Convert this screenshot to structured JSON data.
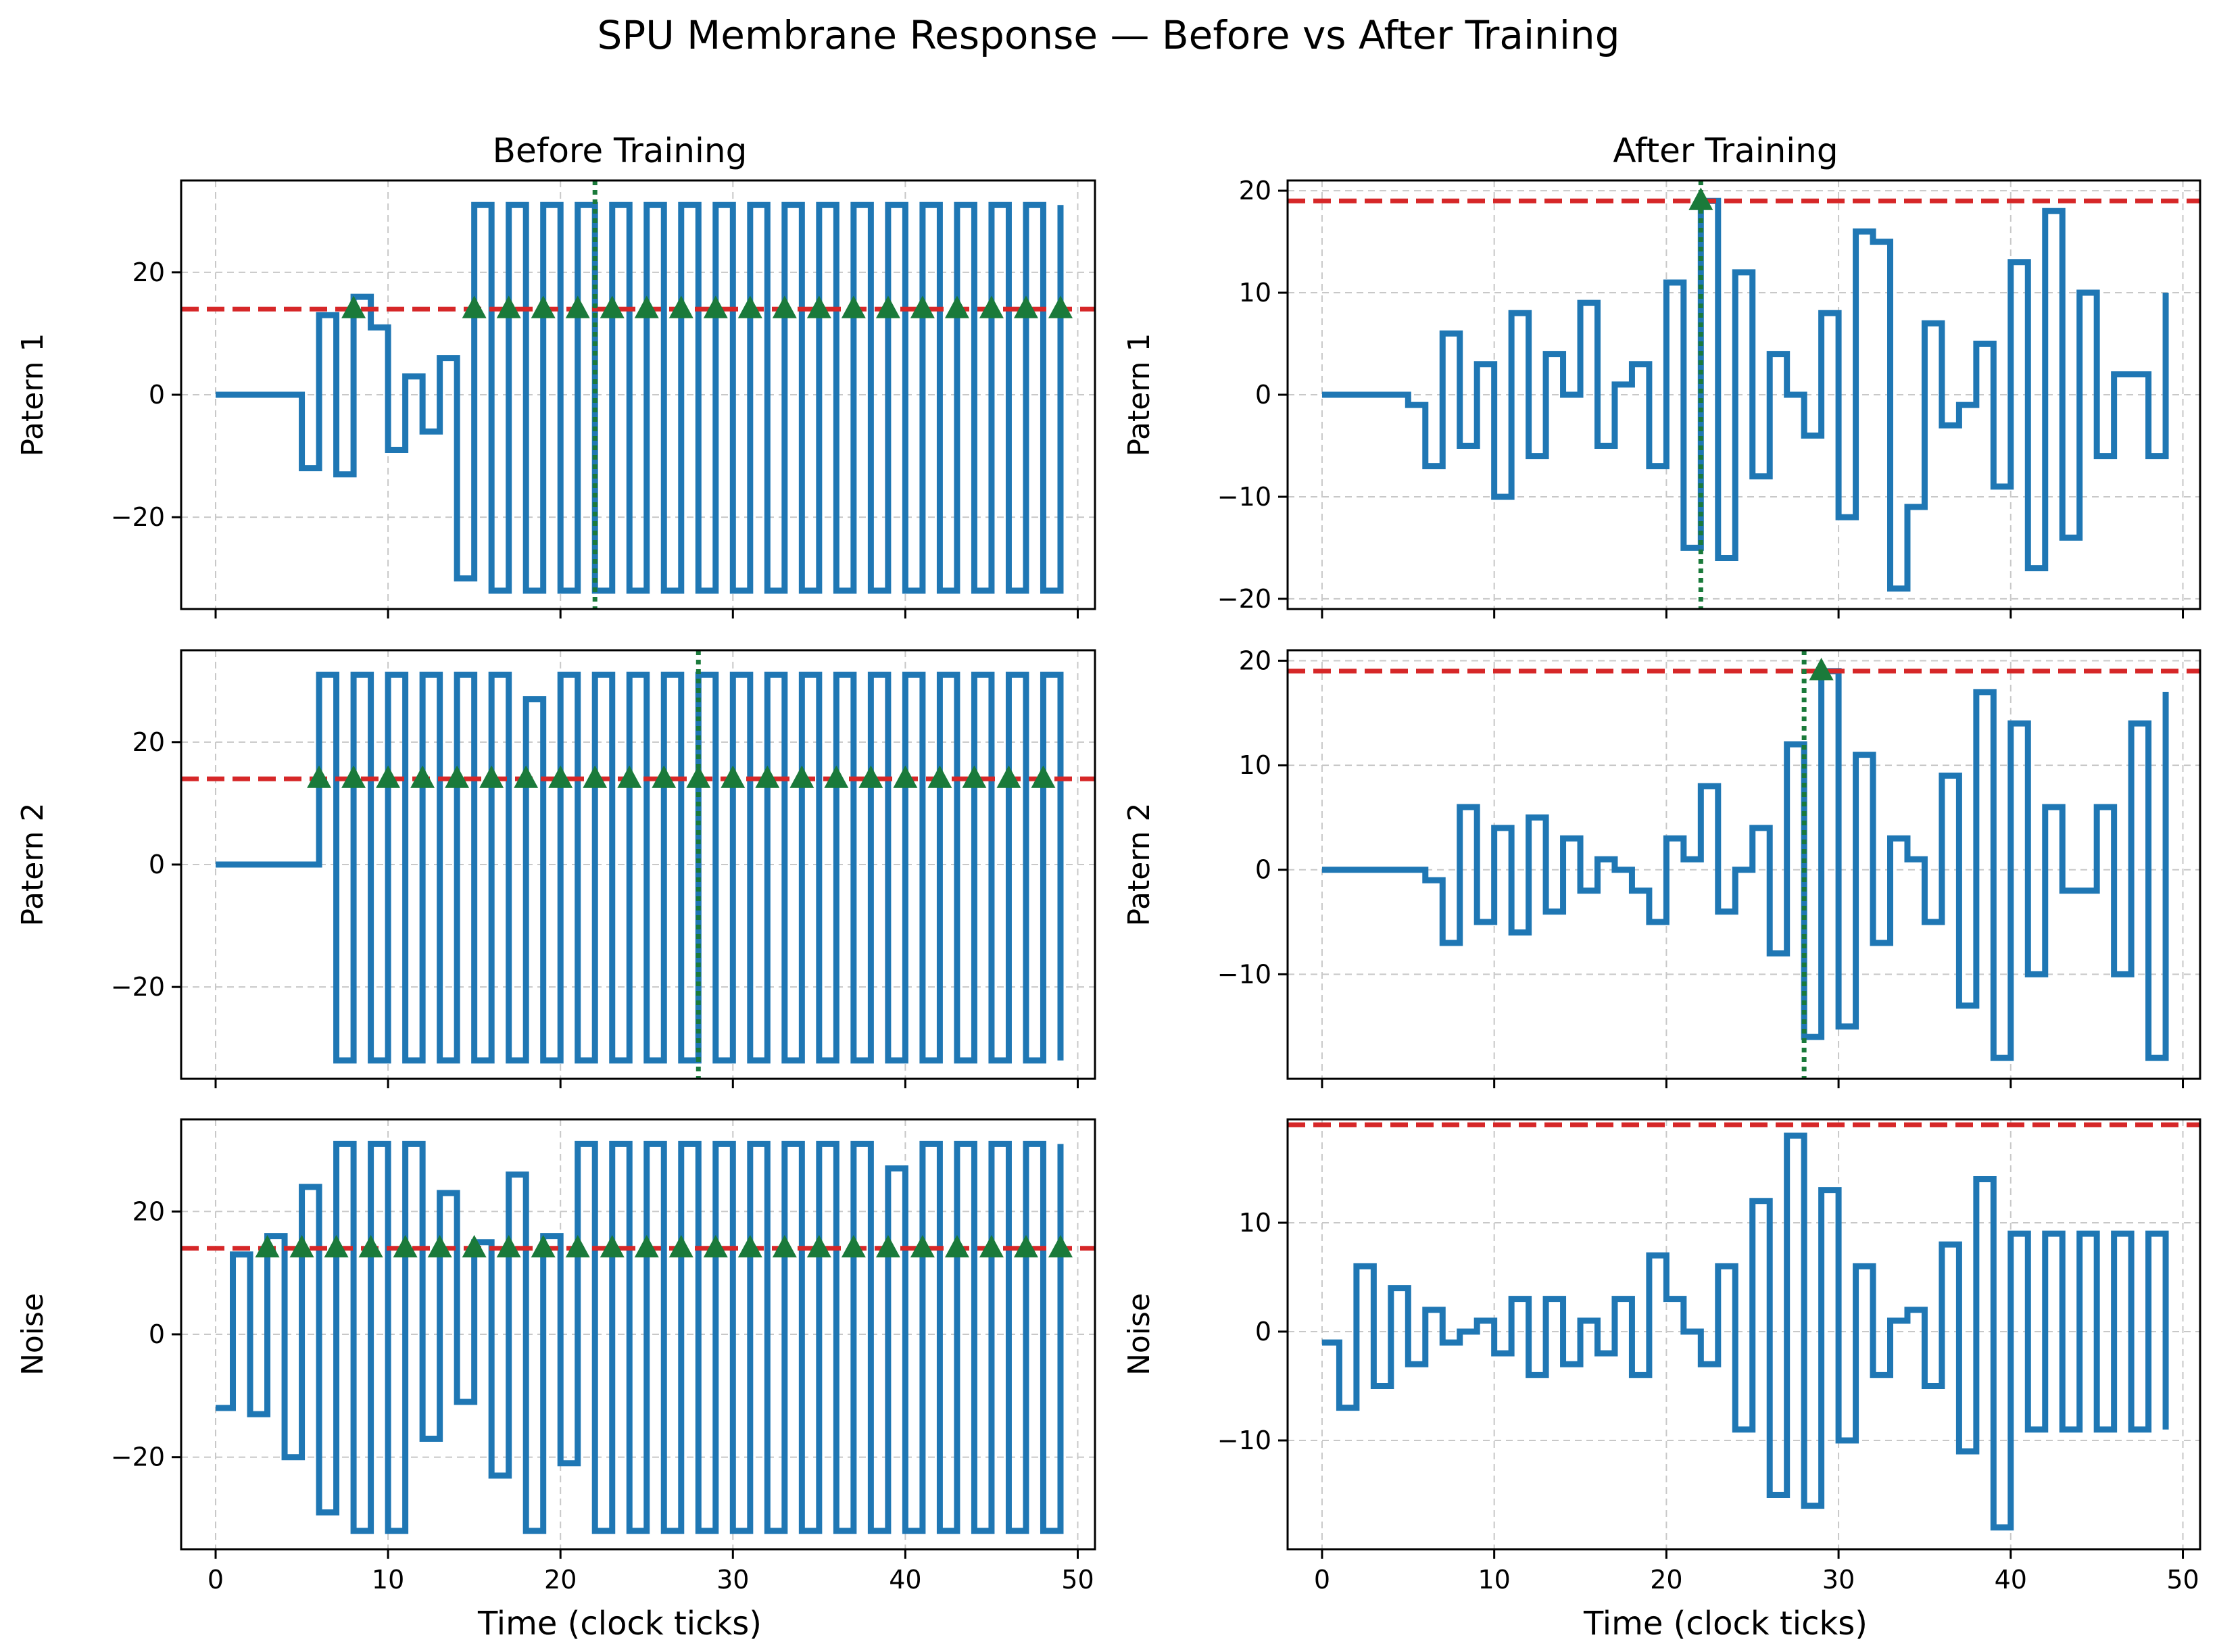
{
  "figure": {
    "title": "SPU Membrane Response — Before vs After Training",
    "columns": [
      "Before Training",
      "After Training"
    ],
    "rows": [
      "Patern 1",
      "Patern 2",
      "Noise"
    ],
    "xlabel": "Time (clock ticks)"
  },
  "colors": {
    "trace": "#1f77b4",
    "threshold": "#d62728",
    "spike": "#1a7a3a",
    "grid": "#c8c8c8"
  },
  "chart_data": [
    {
      "type": "line",
      "column": "Before Training",
      "row": "Patern 1",
      "ylabel": "Patern 1",
      "xlim": [
        -2,
        51
      ],
      "ylim": [
        -35,
        35
      ],
      "xticks": [
        0,
        10,
        20,
        30,
        40,
        50
      ],
      "yticks": [
        -20,
        0,
        20
      ],
      "threshold": 14,
      "first_spike_line": 22,
      "x": [
        0,
        1,
        2,
        3,
        4,
        5,
        6,
        7,
        8,
        9,
        10,
        11,
        12,
        13,
        14,
        15,
        16,
        17,
        18,
        19,
        20,
        21,
        22,
        23,
        24,
        25,
        26,
        27,
        28,
        29,
        30,
        31,
        32,
        33,
        34,
        35,
        36,
        37,
        38,
        39,
        40,
        41,
        42,
        43,
        44,
        45,
        46,
        47,
        48,
        49
      ],
      "values": [
        0,
        0,
        0,
        0,
        0,
        -12,
        13,
        -13,
        16,
        11,
        -9,
        3,
        -6,
        6,
        -30,
        31,
        -32,
        31,
        -32,
        31,
        -32,
        31,
        -32,
        31,
        -32,
        31,
        -32,
        31,
        -32,
        31,
        -32,
        31,
        -32,
        31,
        -32,
        31,
        -32,
        31,
        -32,
        31,
        -32,
        31,
        -32,
        31,
        -32,
        31,
        -32,
        31,
        -32,
        31
      ],
      "spikes_x": [
        8,
        15,
        17,
        19,
        21,
        23,
        25,
        27,
        29,
        31,
        33,
        35,
        37,
        39,
        41,
        43,
        45,
        47,
        49
      ],
      "spike_marker_y": 14
    },
    {
      "type": "line",
      "column": "After Training",
      "row": "Patern 1",
      "ylabel": "Patern 1",
      "xlim": [
        -2,
        51
      ],
      "ylim": [
        -21,
        21
      ],
      "xticks": [
        0,
        10,
        20,
        30,
        40,
        50
      ],
      "yticks": [
        -20,
        -10,
        0,
        10,
        20
      ],
      "threshold": 19,
      "first_spike_line": 22,
      "x": [
        0,
        1,
        2,
        3,
        4,
        5,
        6,
        7,
        8,
        9,
        10,
        11,
        12,
        13,
        14,
        15,
        16,
        17,
        18,
        19,
        20,
        21,
        22,
        23,
        24,
        25,
        26,
        27,
        28,
        29,
        30,
        31,
        32,
        33,
        34,
        35,
        36,
        37,
        38,
        39,
        40,
        41,
        42,
        43,
        44,
        45,
        46,
        47,
        48,
        49
      ],
      "values": [
        0,
        0,
        0,
        0,
        0,
        -1,
        -7,
        6,
        -5,
        3,
        -10,
        8,
        -6,
        4,
        0,
        9,
        -5,
        1,
        3,
        -7,
        11,
        -15,
        19,
        -16,
        12,
        -8,
        4,
        0,
        -4,
        8,
        -12,
        16,
        15,
        -19,
        -11,
        7,
        -3,
        -1,
        5,
        -9,
        13,
        -17,
        18,
        -14,
        10,
        -6,
        2,
        2,
        -6,
        10
      ],
      "spikes_x": [
        22
      ],
      "spike_marker_y": 19
    },
    {
      "type": "line",
      "column": "Before Training",
      "row": "Patern 2",
      "ylabel": "Patern 2",
      "xlim": [
        -2,
        51
      ],
      "ylim": [
        -35,
        35
      ],
      "xticks": [
        0,
        10,
        20,
        30,
        40,
        50
      ],
      "yticks": [
        -20,
        0,
        20
      ],
      "threshold": 14,
      "first_spike_line": 28,
      "x": [
        0,
        1,
        2,
        3,
        4,
        5,
        6,
        7,
        8,
        9,
        10,
        11,
        12,
        13,
        14,
        15,
        16,
        17,
        18,
        19,
        20,
        21,
        22,
        23,
        24,
        25,
        26,
        27,
        28,
        29,
        30,
        31,
        32,
        33,
        34,
        35,
        36,
        37,
        38,
        39,
        40,
        41,
        42,
        43,
        44,
        45,
        46,
        47,
        48,
        49
      ],
      "values": [
        0,
        0,
        0,
        0,
        0,
        0,
        31,
        -32,
        31,
        -32,
        31,
        -32,
        31,
        -32,
        31,
        -32,
        31,
        -32,
        27,
        -32,
        31,
        -32,
        31,
        -32,
        31,
        -32,
        31,
        -32,
        31,
        -32,
        31,
        -32,
        31,
        -32,
        31,
        -32,
        31,
        -32,
        31,
        -32,
        31,
        -32,
        31,
        -32,
        31,
        -32,
        31,
        -32,
        31,
        -32
      ],
      "spikes_x": [
        6,
        8,
        10,
        12,
        14,
        16,
        18,
        20,
        22,
        24,
        26,
        28,
        30,
        32,
        34,
        36,
        38,
        40,
        42,
        44,
        46,
        48
      ],
      "spike_marker_y": 14
    },
    {
      "type": "line",
      "column": "After Training",
      "row": "Patern 2",
      "ylabel": "Patern 2",
      "xlim": [
        -2,
        51
      ],
      "ylim": [
        -20,
        21
      ],
      "xticks": [
        0,
        10,
        20,
        30,
        40,
        50
      ],
      "yticks": [
        -10,
        0,
        10,
        20
      ],
      "threshold": 19,
      "first_spike_line": 28,
      "x": [
        0,
        1,
        2,
        3,
        4,
        5,
        6,
        7,
        8,
        9,
        10,
        11,
        12,
        13,
        14,
        15,
        16,
        17,
        18,
        19,
        20,
        21,
        22,
        23,
        24,
        25,
        26,
        27,
        28,
        29,
        30,
        31,
        32,
        33,
        34,
        35,
        36,
        37,
        38,
        39,
        40,
        41,
        42,
        43,
        44,
        45,
        46,
        47,
        48,
        49
      ],
      "values": [
        0,
        0,
        0,
        0,
        0,
        0,
        -1,
        -7,
        6,
        -5,
        4,
        -6,
        5,
        -4,
        3,
        -2,
        1,
        0,
        -2,
        -5,
        3,
        1,
        8,
        -4,
        0,
        4,
        -8,
        12,
        -16,
        19,
        -15,
        11,
        -7,
        3,
        1,
        -5,
        9,
        -13,
        17,
        -18,
        14,
        -10,
        6,
        -2,
        -2,
        6,
        -10,
        14,
        -18,
        17
      ],
      "spikes_x": [
        29
      ],
      "spike_marker_y": 19
    },
    {
      "type": "line",
      "column": "Before Training",
      "row": "Noise",
      "ylabel": "Noise",
      "xlim": [
        -2,
        51
      ],
      "ylim": [
        -35,
        35
      ],
      "xticks": [
        0,
        10,
        20,
        30,
        40,
        50
      ],
      "yticks": [
        -20,
        0,
        20
      ],
      "threshold": 14,
      "first_spike_line": null,
      "x": [
        0,
        1,
        2,
        3,
        4,
        5,
        6,
        7,
        8,
        9,
        10,
        11,
        12,
        13,
        14,
        15,
        16,
        17,
        18,
        19,
        20,
        21,
        22,
        23,
        24,
        25,
        26,
        27,
        28,
        29,
        30,
        31,
        32,
        33,
        34,
        35,
        36,
        37,
        38,
        39,
        40,
        41,
        42,
        43,
        44,
        45,
        46,
        47,
        48,
        49
      ],
      "values": [
        -12,
        13,
        -13,
        16,
        -20,
        24,
        -29,
        31,
        -32,
        31,
        -32,
        31,
        -17,
        23,
        -11,
        15,
        -23,
        26,
        -32,
        16,
        -21,
        31,
        -32,
        31,
        -32,
        31,
        -32,
        31,
        -32,
        31,
        -32,
        31,
        -32,
        31,
        -32,
        31,
        -32,
        31,
        -32,
        27,
        -32,
        31,
        -32,
        31,
        -32,
        31,
        -32,
        31,
        -32,
        31
      ],
      "spikes_x": [
        3,
        5,
        7,
        9,
        11,
        13,
        15,
        17,
        19,
        21,
        23,
        25,
        27,
        29,
        31,
        33,
        35,
        37,
        39,
        41,
        43,
        45,
        47,
        49
      ],
      "spike_marker_y": 14
    },
    {
      "type": "line",
      "column": "After Training",
      "row": "Noise",
      "ylabel": "Noise",
      "xlim": [
        -2,
        51
      ],
      "ylim": [
        -20,
        19.5
      ],
      "xticks": [
        0,
        10,
        20,
        30,
        40,
        50
      ],
      "yticks": [
        -10,
        0,
        10
      ],
      "threshold": 19,
      "first_spike_line": null,
      "x": [
        0,
        1,
        2,
        3,
        4,
        5,
        6,
        7,
        8,
        9,
        10,
        11,
        12,
        13,
        14,
        15,
        16,
        17,
        18,
        19,
        20,
        21,
        22,
        23,
        24,
        25,
        26,
        27,
        28,
        29,
        30,
        31,
        32,
        33,
        34,
        35,
        36,
        37,
        38,
        39,
        40,
        41,
        42,
        43,
        44,
        45,
        46,
        47,
        48,
        49
      ],
      "values": [
        -1,
        -7,
        6,
        -5,
        4,
        -3,
        2,
        -1,
        0,
        1,
        -2,
        3,
        -4,
        3,
        -3,
        1,
        -2,
        3,
        -4,
        7,
        3,
        0,
        -3,
        6,
        -9,
        12,
        -15,
        18,
        -16,
        13,
        -10,
        6,
        -4,
        1,
        2,
        -5,
        8,
        -11,
        14,
        -18,
        9,
        -9,
        9,
        -9,
        9,
        -9,
        9,
        -9,
        9,
        -9
      ],
      "spikes_x": [],
      "spike_marker_y": 19
    }
  ]
}
